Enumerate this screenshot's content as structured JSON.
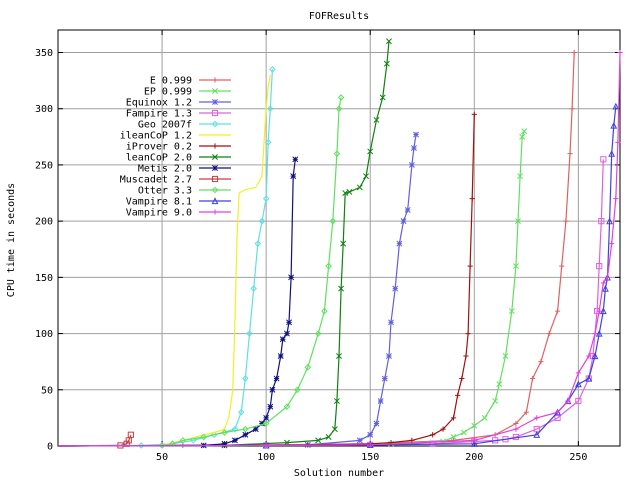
{
  "chart_data": {
    "type": "line",
    "title": "FOFResults",
    "xlabel": "Solution number",
    "ylabel": "CPU time in seconds",
    "xlim": [
      0,
      270
    ],
    "ylim": [
      0,
      370
    ],
    "xticks": [
      50,
      100,
      150,
      200,
      250
    ],
    "yticks": [
      0,
      50,
      100,
      150,
      200,
      250,
      300,
      350
    ],
    "grid": true,
    "legend_position": "top-left",
    "series": [
      {
        "name": "E 0.999",
        "color": "#e06060",
        "marker": "plus",
        "x": [
          0,
          60,
          100,
          150,
          190,
          210,
          220,
          225,
          228,
          232,
          236,
          240,
          242,
          244,
          246,
          247,
          248
        ],
        "y": [
          0,
          0.5,
          1,
          2,
          5,
          10,
          20,
          30,
          60,
          75,
          100,
          120,
          160,
          200,
          260,
          300,
          350
        ]
      },
      {
        "name": "EP 0.999",
        "color": "#60e060",
        "marker": "cross",
        "x": [
          0,
          80,
          120,
          160,
          185,
          190,
          195,
          200,
          205,
          210,
          212,
          215,
          218,
          220,
          221,
          222,
          223,
          224
        ],
        "y": [
          0,
          0.5,
          1,
          2,
          4,
          8,
          12,
          18,
          25,
          40,
          55,
          80,
          120,
          160,
          200,
          240,
          275,
          280
        ]
      },
      {
        "name": "Equinox 1.2",
        "color": "#6060e0",
        "marker": "star",
        "x": [
          0,
          80,
          120,
          145,
          150,
          153,
          155,
          157,
          159,
          160,
          162,
          164,
          166,
          168,
          170,
          171,
          172
        ],
        "y": [
          0,
          0.5,
          1,
          5,
          10,
          20,
          40,
          60,
          80,
          110,
          140,
          180,
          200,
          210,
          250,
          265,
          277
        ]
      },
      {
        "name": "Fampire 1.3",
        "color": "#e060e0",
        "marker": "square",
        "x": [
          0,
          100,
          150,
          180,
          200,
          210,
          215,
          220,
          230,
          240,
          250,
          255,
          257,
          259,
          260,
          261,
          262
        ],
        "y": [
          0,
          0.5,
          1,
          2,
          4,
          5,
          6,
          8,
          15,
          25,
          40,
          60,
          80,
          120,
          160,
          200,
          255
        ]
      },
      {
        "name": "Geo 2007f",
        "color": "#60e0e0",
        "marker": "diamond",
        "x": [
          0,
          40,
          55,
          65,
          75,
          85,
          88,
          90,
          92,
          94,
          96,
          98,
          100,
          101,
          102,
          103
        ],
        "y": [
          0,
          0.5,
          2,
          5,
          10,
          15,
          30,
          60,
          100,
          140,
          180,
          200,
          220,
          270,
          300,
          335
        ]
      },
      {
        "name": "ileanCoP 1.2",
        "color": "#f0f020",
        "marker": "none",
        "x": [
          0,
          50,
          60,
          70,
          75,
          80,
          82,
          84,
          85,
          86,
          87,
          90,
          95,
          98,
          100,
          101,
          102
        ],
        "y": [
          0,
          0.5,
          5,
          10,
          12,
          15,
          25,
          50,
          110,
          185,
          225,
          228,
          230,
          240,
          300,
          320,
          330
        ]
      },
      {
        "name": "iProver 0.2",
        "color": "#a01010",
        "marker": "plus",
        "x": [
          0,
          80,
          120,
          150,
          160,
          170,
          180,
          185,
          190,
          192,
          194,
          196,
          197,
          198,
          199,
          200
        ],
        "y": [
          0,
          0.5,
          1,
          2,
          3,
          5,
          10,
          15,
          25,
          45,
          60,
          80,
          100,
          160,
          220,
          295
        ]
      },
      {
        "name": "leanCoP 2.0",
        "color": "#108010",
        "marker": "cross",
        "x": [
          0,
          80,
          110,
          125,
          130,
          133,
          134,
          135,
          136,
          137,
          138,
          140,
          145,
          148,
          150,
          153,
          156,
          158,
          159
        ],
        "y": [
          0,
          0.5,
          3,
          5,
          8,
          15,
          40,
          80,
          140,
          180,
          225,
          226,
          230,
          240,
          262,
          290,
          310,
          340,
          360
        ]
      },
      {
        "name": "Metis 2.0",
        "color": "#101080",
        "marker": "star",
        "x": [
          0,
          70,
          80,
          85,
          90,
          95,
          98,
          100,
          102,
          103,
          105,
          107,
          108,
          110,
          111,
          112,
          113,
          114
        ],
        "y": [
          0,
          0.5,
          2,
          5,
          10,
          15,
          20,
          25,
          35,
          50,
          60,
          80,
          95,
          100,
          110,
          150,
          240,
          255
        ]
      },
      {
        "name": "Muscadet 2.7",
        "color": "#c04040",
        "marker": "square",
        "x": [
          0,
          30,
          33,
          34,
          35
        ],
        "y": [
          0,
          0.5,
          2,
          5,
          10
        ]
      },
      {
        "name": "Otter 3.3",
        "color": "#60e060",
        "marker": "diamond",
        "x": [
          0,
          50,
          55,
          60,
          70,
          80,
          90,
          100,
          110,
          115,
          120,
          125,
          128,
          130,
          132,
          134,
          135,
          136
        ],
        "y": [
          0,
          0.5,
          2,
          5,
          8,
          12,
          15,
          20,
          35,
          50,
          70,
          100,
          120,
          160,
          200,
          260,
          300,
          310
        ]
      },
      {
        "name": "Vampire 8.1",
        "color": "#4040e0",
        "marker": "triangle",
        "x": [
          0,
          100,
          150,
          200,
          230,
          240,
          245,
          250,
          255,
          258,
          260,
          262,
          263,
          264,
          265,
          266,
          267,
          268
        ],
        "y": [
          0,
          0.5,
          1,
          2,
          10,
          30,
          40,
          55,
          60,
          80,
          100,
          120,
          140,
          150,
          200,
          260,
          285,
          302
        ]
      },
      {
        "name": "Vampire 9.0",
        "color": "#e040e0",
        "marker": "plus",
        "x": [
          0,
          100,
          150,
          200,
          220,
          230,
          240,
          245,
          250,
          255,
          258,
          260,
          262,
          264,
          266,
          268,
          269,
          270
        ],
        "y": [
          0,
          0.5,
          1,
          5,
          15,
          25,
          30,
          40,
          65,
          80,
          100,
          120,
          145,
          150,
          180,
          220,
          270,
          350
        ]
      }
    ]
  }
}
